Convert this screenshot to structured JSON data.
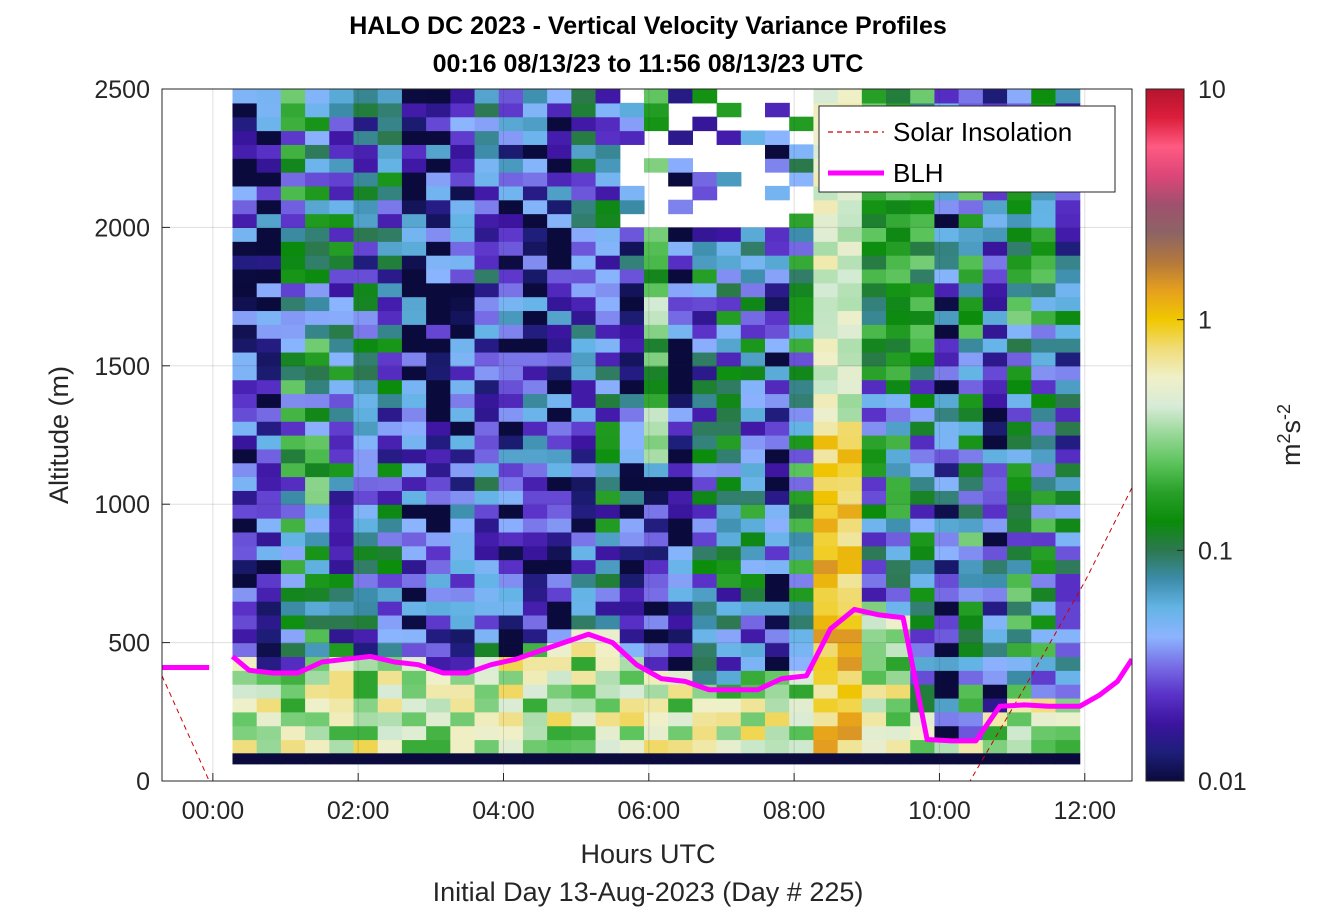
{
  "chart_data": {
    "type": "heatmap",
    "title": "HALO DC 2023 - Vertical Velocity Variance Profiles",
    "subtitle": "00:16 08/13/23 to 11:56 08/13/23  UTC",
    "xlabel": "Hours UTC",
    "xlabel2": "Initial Day 13-Aug-2023 (Day # 225)",
    "ylabel": "Altitude (m)",
    "colorbar_label": "m²s⁻²",
    "colorbar_label_base": "m",
    "colorbar_label_sup1": "2",
    "colorbar_label_mid": "s",
    "colorbar_label_sup2": "-2",
    "colorbar_scale": "log",
    "colorbar_range": [
      0.01,
      10
    ],
    "colorbar_ticks": [
      0.01,
      0.1,
      1,
      10
    ],
    "colorbar_tick_labels": [
      "0.01",
      "0.1",
      "1",
      "10"
    ],
    "xlim_hours": [
      -0.7,
      12.65
    ],
    "ylim": [
      0,
      2500
    ],
    "x_ticks": [
      0,
      2,
      4,
      6,
      8,
      10,
      12
    ],
    "x_tick_labels": [
      "00:00",
      "02:00",
      "04:00",
      "06:00",
      "08:00",
      "10:00",
      "12:00"
    ],
    "y_ticks": [
      0,
      500,
      1000,
      1500,
      2000,
      2500
    ],
    "y_tick_labels": [
      "0",
      "500",
      "1000",
      "1500",
      "2000",
      "2500"
    ],
    "grid": true,
    "legend_position": "top-right",
    "heatmap_time_range_hours": [
      0.27,
      11.93
    ],
    "heatmap_columns": 35,
    "heatmap_altitude_range": [
      100,
      2500
    ],
    "heatmap_row_height_m": 50,
    "legend": [
      {
        "name": "Solar Insolation",
        "style": "dashed",
        "color": "#cc0000"
      },
      {
        "name": "BLH",
        "style": "solid",
        "color": "#ff00ff"
      }
    ],
    "series": [
      {
        "name": "BLH",
        "x": [
          -0.7,
          -0.05,
          0.27,
          0.5,
          0.83,
          1.17,
          1.5,
          1.83,
          2.17,
          2.5,
          2.83,
          3.17,
          3.5,
          3.83,
          4.17,
          4.5,
          4.83,
          5.17,
          5.5,
          5.83,
          6.17,
          6.5,
          6.83,
          7.17,
          7.5,
          7.83,
          8.17,
          8.5,
          8.83,
          9.17,
          9.5,
          9.83,
          10.17,
          10.5,
          10.83,
          11.17,
          11.5,
          11.93,
          12.2,
          12.45,
          12.65
        ],
        "y": [
          410,
          410,
          450,
          400,
          390,
          390,
          430,
          440,
          450,
          430,
          420,
          390,
          390,
          420,
          440,
          470,
          500,
          530,
          500,
          420,
          370,
          360,
          330,
          330,
          330,
          370,
          380,
          550,
          620,
          600,
          590,
          150,
          145,
          145,
          270,
          275,
          270,
          270,
          310,
          360,
          440
        ]
      },
      {
        "name": "Solar Insolation",
        "x": [
          -0.7,
          -0.05,
          0.27,
          2,
          4,
          6,
          8,
          10,
          10.42,
          11.2,
          12.0,
          12.65
        ],
        "y": [
          380,
          0,
          0,
          0,
          0,
          0,
          0,
          0,
          0,
          350,
          720,
          1060
        ]
      }
    ],
    "cell_values_note_free": true,
    "colorbar_colors": [
      "#0a0a3c",
      "#1e1e7a",
      "#3c14a0",
      "#5a32c8",
      "#786ee6",
      "#8cb4ff",
      "#64b4e6",
      "#3c8caa",
      "#2d7850",
      "#0a8c0a",
      "#28a028",
      "#5ac35a",
      "#96d796",
      "#d7ebd7",
      "#f0f0c8",
      "#f0dc78",
      "#f0c800",
      "#e6a01e",
      "#b4783c",
      "#8c6464",
      "#a0506e",
      "#dc4678",
      "#ff5a82",
      "#dc1e3c",
      "#b4142d"
    ]
  }
}
